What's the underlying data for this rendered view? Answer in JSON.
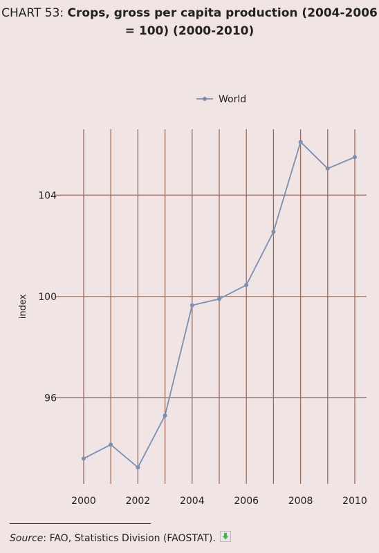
{
  "title": {
    "prefix": "CHART 53: ",
    "main": "Crops, gross per capita production (2004-2006 = 100) (2000-2010)"
  },
  "chart_data": {
    "type": "line",
    "title": "CHART 53: Crops, gross per capita production (2004-2006 = 100) (2000-2010)",
    "xlabel": "",
    "ylabel": "index",
    "x": [
      2000,
      2001,
      2002,
      2003,
      2004,
      2005,
      2006,
      2007,
      2008,
      2009,
      2010
    ],
    "xticks": [
      "2000",
      "2002",
      "2004",
      "2006",
      "2008",
      "2010"
    ],
    "yticks": [
      "96",
      "100",
      "104"
    ],
    "ylim": [
      92.6,
      106.6
    ],
    "xlim": [
      2000,
      2010
    ],
    "grid": true,
    "legend": "top-center",
    "series": [
      {
        "name": "World",
        "color": "#7b8fb0",
        "values": [
          93.6,
          94.15,
          93.25,
          95.3,
          99.65,
          99.9,
          100.45,
          102.55,
          106.1,
          105.05,
          105.5
        ]
      }
    ],
    "grid_color": "#9a6b5c"
  },
  "source": {
    "label": "Source",
    "text": ": FAO, Statistics Division (FAOSTAT).",
    "icon": "download-icon"
  }
}
